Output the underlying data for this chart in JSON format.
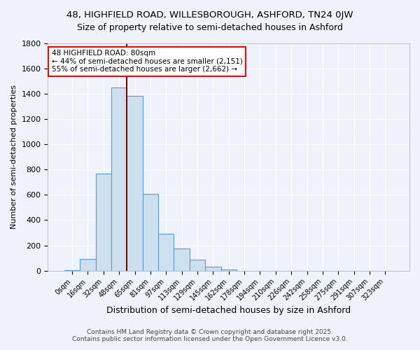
{
  "title_line1": "48, HIGHFIELD ROAD, WILLESBOROUGH, ASHFORD, TN24 0JW",
  "title_line2": "Size of property relative to semi-detached houses in Ashford",
  "xlabel": "Distribution of semi-detached houses by size in Ashford",
  "ylabel": "Number of semi-detached properties",
  "bin_labels": [
    "0sqm",
    "16sqm",
    "32sqm",
    "48sqm",
    "65sqm",
    "81sqm",
    "97sqm",
    "113sqm",
    "129sqm",
    "145sqm",
    "162sqm",
    "178sqm",
    "194sqm",
    "210sqm",
    "226sqm",
    "242sqm",
    "258sqm",
    "275sqm",
    "291sqm",
    "307sqm",
    "323sqm"
  ],
  "bar_values": [
    5,
    95,
    770,
    1450,
    1380,
    610,
    290,
    175,
    85,
    30,
    12,
    0,
    0,
    0,
    0,
    0,
    0,
    0,
    0,
    0,
    0
  ],
  "bar_color": "#cce0f0",
  "bar_edge_color": "#5b9bd5",
  "red_line_x": 3.5,
  "annotation_label": "48 HIGHFIELD ROAD: 80sqm",
  "annotation_smaller": "← 44% of semi-detached houses are smaller (2,151)",
  "annotation_larger": "55% of semi-detached houses are larger (2,662) →",
  "ylim": [
    0,
    1800
  ],
  "yticks": [
    0,
    200,
    400,
    600,
    800,
    1000,
    1200,
    1400,
    1600,
    1800
  ],
  "footer_line1": "Contains HM Land Registry data © Crown copyright and database right 2025.",
  "footer_line2": "Contains public sector information licensed under the Open Government Licence v3.0.",
  "bg_color": "#eef2fb",
  "plot_bg_color": "#eef2fb"
}
